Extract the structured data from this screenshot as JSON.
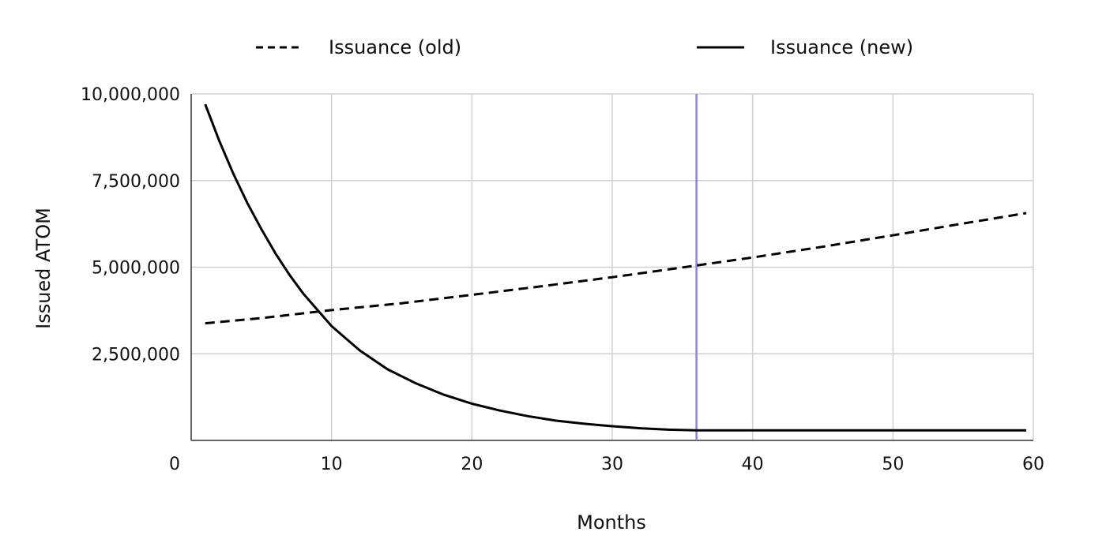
{
  "chart_data": {
    "type": "line",
    "title": "",
    "xlabel": "Months",
    "ylabel": "Issued ATOM",
    "xlim": [
      0,
      60
    ],
    "ylim": [
      0,
      10000000
    ],
    "x_ticks": [
      "0",
      "10",
      "20",
      "30",
      "40",
      "50",
      "60"
    ],
    "y_ticks": [
      "2,500,000",
      "5,000,000",
      "7,500,000",
      "10,000,000"
    ],
    "grid": true,
    "legend_position": "top",
    "reference_line": {
      "x": 36,
      "color": "#8f7ff0"
    },
    "series": [
      {
        "name": "Issuance (old)",
        "style": "dashed",
        "color": "#000000",
        "x": [
          1,
          5,
          10,
          15,
          20,
          25,
          30,
          35,
          40,
          45,
          50,
          55,
          59.5
        ],
        "y": [
          3380000,
          3530000,
          3760000,
          3960000,
          4200000,
          4450000,
          4710000,
          4990000,
          5280000,
          5590000,
          5920000,
          6260000,
          6560000
        ]
      },
      {
        "name": "Issuance (new)",
        "style": "solid",
        "color": "#000000",
        "x": [
          1,
          2,
          3,
          4,
          5,
          6,
          7,
          8,
          10,
          12,
          14,
          16,
          18,
          20,
          22,
          24,
          26,
          28,
          30,
          32,
          34,
          36,
          40,
          45,
          50,
          55,
          59.5
        ],
        "y": [
          9700000,
          8650000,
          7700000,
          6850000,
          6100000,
          5400000,
          4780000,
          4230000,
          3300000,
          2600000,
          2050000,
          1650000,
          1320000,
          1060000,
          860000,
          700000,
          570000,
          480000,
          410000,
          350000,
          310000,
          290000,
          290000,
          290000,
          290000,
          290000,
          290000
        ]
      }
    ]
  }
}
